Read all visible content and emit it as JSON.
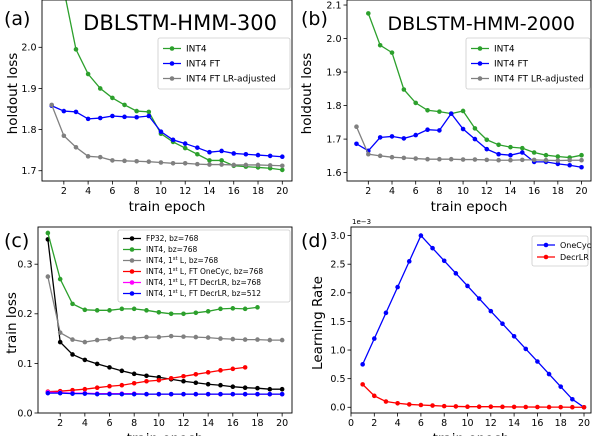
{
  "chart_data": [
    {
      "type": "line",
      "panel_label": "(a)",
      "title": "DBLSTM-HMM-300",
      "xlabel": "train epoch",
      "ylabel": "holdout loss",
      "xlim": [
        0.2,
        20.8
      ],
      "ylim": [
        1.675,
        2.115
      ],
      "xticks": [
        2,
        4,
        6,
        8,
        10,
        12,
        14,
        16,
        18,
        20
      ],
      "yticks": [
        1.7,
        1.8,
        1.9,
        2.0
      ],
      "ytick_labels": [
        "1.7",
        "1.8",
        "1.9",
        "2.0"
      ],
      "legend_position": "top-right",
      "series": [
        {
          "name": "INT4",
          "color": "#2ca02c",
          "x": [
            2,
            3,
            4,
            5,
            6,
            7,
            8,
            9,
            10,
            11,
            12,
            13,
            14,
            15,
            16,
            17,
            18,
            19,
            20
          ],
          "values": [
            2.14,
            1.995,
            1.935,
            1.9,
            1.877,
            1.86,
            1.845,
            1.843,
            1.79,
            1.77,
            1.755,
            1.74,
            1.725,
            1.725,
            1.712,
            1.71,
            1.708,
            1.706,
            1.702
          ]
        },
        {
          "name": "INT4 FT",
          "color": "#0000ff",
          "x": [
            1,
            2,
            3,
            4,
            5,
            6,
            7,
            8,
            9,
            10,
            11,
            12,
            13,
            14,
            15,
            16,
            17,
            18,
            19,
            20
          ],
          "values": [
            1.858,
            1.845,
            1.843,
            1.826,
            1.828,
            1.833,
            1.831,
            1.83,
            1.833,
            1.795,
            1.775,
            1.766,
            1.756,
            1.745,
            1.748,
            1.742,
            1.74,
            1.738,
            1.736,
            1.734
          ]
        },
        {
          "name": "INT4 FT LR-adjusted",
          "color": "#808080",
          "x": [
            1,
            2,
            3,
            4,
            5,
            6,
            7,
            8,
            9,
            10,
            11,
            12,
            13,
            14,
            15,
            16,
            17,
            18,
            19,
            20
          ],
          "values": [
            1.86,
            1.785,
            1.757,
            1.735,
            1.733,
            1.725,
            1.724,
            1.723,
            1.722,
            1.72,
            1.718,
            1.718,
            1.716,
            1.715,
            1.715,
            1.714,
            1.714,
            1.714,
            1.713,
            1.712
          ]
        }
      ]
    },
    {
      "type": "line",
      "panel_label": "(b)",
      "title": "DBLSTM-HMM-2000",
      "xlabel": "train epoch",
      "ylabel": "holdout loss",
      "xlim": [
        0.2,
        20.8
      ],
      "ylim": [
        1.575,
        2.115
      ],
      "xticks": [
        2,
        4,
        6,
        8,
        10,
        12,
        14,
        16,
        18,
        20
      ],
      "yticks": [
        1.6,
        1.7,
        1.8,
        1.9,
        2.0,
        2.1
      ],
      "ytick_labels": [
        "1.6",
        "1.7",
        "1.8",
        "1.9",
        "2.0",
        "2.1"
      ],
      "legend_position": "top-right",
      "series": [
        {
          "name": "INT4",
          "color": "#2ca02c",
          "x": [
            2,
            3,
            4,
            5,
            6,
            7,
            8,
            9,
            10,
            11,
            12,
            13,
            14,
            15,
            16,
            17,
            18,
            19,
            20
          ],
          "values": [
            2.075,
            1.98,
            1.958,
            1.848,
            1.808,
            1.786,
            1.782,
            1.776,
            1.784,
            1.732,
            1.698,
            1.683,
            1.676,
            1.673,
            1.66,
            1.652,
            1.648,
            1.645,
            1.652
          ]
        },
        {
          "name": "INT4 FT",
          "color": "#0000ff",
          "x": [
            1,
            2,
            3,
            4,
            5,
            6,
            7,
            8,
            9,
            10,
            11,
            12,
            13,
            14,
            15,
            16,
            17,
            18,
            19,
            20
          ],
          "values": [
            1.686,
            1.665,
            1.705,
            1.708,
            1.702,
            1.712,
            1.728,
            1.726,
            1.776,
            1.73,
            1.7,
            1.67,
            1.655,
            1.652,
            1.66,
            1.632,
            1.632,
            1.626,
            1.622,
            1.616
          ]
        },
        {
          "name": "INT4 FT LR-adjusted",
          "color": "#808080",
          "x": [
            1,
            2,
            3,
            4,
            5,
            6,
            7,
            8,
            9,
            10,
            11,
            12,
            13,
            14,
            15,
            16,
            17,
            18,
            19,
            20
          ],
          "values": [
            1.737,
            1.655,
            1.65,
            1.646,
            1.644,
            1.642,
            1.64,
            1.64,
            1.64,
            1.639,
            1.639,
            1.638,
            1.637,
            1.637,
            1.638,
            1.638,
            1.637,
            1.636,
            1.637,
            1.637
          ]
        }
      ]
    },
    {
      "type": "line",
      "panel_label": "(c)",
      "title": "",
      "xlabel": "train epoch",
      "ylabel": "train loss",
      "xlim": [
        0.2,
        20.8
      ],
      "ylim": [
        0.0,
        0.375
      ],
      "xticks": [
        2,
        4,
        6,
        8,
        10,
        12,
        14,
        16,
        18,
        20
      ],
      "yticks": [
        0.0,
        0.1,
        0.2,
        0.3
      ],
      "ytick_labels": [
        "0.0",
        "0.1",
        "0.2",
        "0.3"
      ],
      "legend_position": "top-right",
      "series": [
        {
          "name": "FP32, bz=768",
          "color": "#000000",
          "x": [
            1,
            2,
            3,
            4,
            5,
            6,
            7,
            8,
            9,
            10,
            11,
            12,
            13,
            14,
            15,
            16,
            17,
            18,
            19,
            20
          ],
          "values": [
            0.35,
            0.143,
            0.118,
            0.107,
            0.099,
            0.092,
            0.085,
            0.079,
            0.075,
            0.072,
            0.068,
            0.064,
            0.061,
            0.058,
            0.056,
            0.053,
            0.051,
            0.05,
            0.048,
            0.048
          ]
        },
        {
          "name": "INT4, bz=768",
          "color": "#2ca02c",
          "x": [
            1,
            2,
            3,
            4,
            5,
            6,
            7,
            8,
            9,
            10,
            11,
            12,
            13,
            14,
            15,
            16,
            17,
            18
          ],
          "values": [
            0.363,
            0.27,
            0.22,
            0.208,
            0.207,
            0.207,
            0.21,
            0.21,
            0.207,
            0.203,
            0.2,
            0.2,
            0.202,
            0.205,
            0.21,
            0.211,
            0.21,
            0.213
          ]
        },
        {
          "name": "INT4, 1$^{st}$ L, bz=768",
          "color": "#808080",
          "x": [
            1,
            2,
            3,
            4,
            5,
            6,
            7,
            8,
            9,
            10,
            11,
            12,
            13,
            14,
            15,
            16,
            17,
            18,
            19,
            20
          ],
          "values": [
            0.275,
            0.162,
            0.148,
            0.143,
            0.147,
            0.149,
            0.152,
            0.151,
            0.153,
            0.153,
            0.155,
            0.154,
            0.153,
            0.152,
            0.15,
            0.149,
            0.148,
            0.148,
            0.147,
            0.147
          ]
        },
        {
          "name": "INT4, 1$^{st}$ L, FT OneCyc, bz=768",
          "color": "#ff0000",
          "x": [
            1,
            2,
            3,
            4,
            5,
            6,
            7,
            8,
            9,
            10,
            11,
            12,
            13,
            14,
            15,
            16,
            17
          ],
          "values": [
            0.043,
            0.044,
            0.046,
            0.048,
            0.051,
            0.054,
            0.056,
            0.06,
            0.064,
            0.066,
            0.07,
            0.074,
            0.078,
            0.082,
            0.086,
            0.089,
            0.092
          ]
        },
        {
          "name": "INT4, 1$^{st}$ L, FT DecrLR, bz=768",
          "color": "#ff00ff",
          "x": [
            1,
            2,
            3,
            4,
            5,
            6,
            7,
            8,
            9,
            10,
            11,
            12,
            13,
            14,
            15,
            16,
            17,
            18,
            19,
            20
          ],
          "values": [
            0.042,
            0.041,
            0.04,
            0.04,
            0.039,
            0.039,
            0.039,
            0.039,
            0.038,
            0.038,
            0.038,
            0.038,
            0.038,
            0.038,
            0.038,
            0.038,
            0.038,
            0.038,
            0.038,
            0.038
          ]
        },
        {
          "name": "INT4, 1$^{st}$ L, FT DecrLR,  bz=512",
          "color": "#0000ff",
          "x": [
            1,
            2,
            3,
            4,
            5,
            6,
            7,
            8,
            9,
            10,
            11,
            12,
            13,
            14,
            15,
            16,
            17,
            18,
            19,
            20
          ],
          "values": [
            0.04,
            0.04,
            0.039,
            0.039,
            0.038,
            0.038,
            0.038,
            0.038,
            0.038,
            0.038,
            0.038,
            0.038,
            0.038,
            0.038,
            0.038,
            0.038,
            0.038,
            0.038,
            0.038,
            0.038
          ]
        }
      ]
    },
    {
      "type": "line",
      "panel_label": "(d)",
      "title": "",
      "xlabel": "train epoch",
      "ylabel": "Learning Rate",
      "scale_note": "1e−3",
      "xlim": [
        0.0,
        20.6
      ],
      "ylim": [
        -0.1,
        3.15
      ],
      "xticks": [
        0,
        2,
        4,
        6,
        8,
        10,
        12,
        14,
        16,
        18,
        20
      ],
      "yticks": [
        0.0,
        0.5,
        1.0,
        1.5,
        2.0,
        2.5,
        3.0
      ],
      "ytick_labels": [
        "0.0",
        "0.5",
        "1.0",
        "1.5",
        "2.0",
        "2.5",
        "3.0"
      ],
      "legend_position": "top-right",
      "series": [
        {
          "name": "OneCyc",
          "color": "#0000ff",
          "x": [
            1,
            2,
            3,
            4,
            5,
            6,
            7,
            8,
            9,
            10,
            11,
            12,
            13,
            14,
            15,
            16,
            17,
            18,
            19,
            20
          ],
          "values": [
            0.75,
            1.2,
            1.65,
            2.1,
            2.55,
            3.0,
            2.78,
            2.56,
            2.34,
            2.12,
            1.9,
            1.68,
            1.46,
            1.24,
            1.02,
            0.8,
            0.58,
            0.36,
            0.14,
            0.0
          ]
        },
        {
          "name": "DecrLR",
          "color": "#ff0000",
          "x": [
            1,
            2,
            3,
            4,
            5,
            6,
            7,
            8,
            9,
            10,
            11,
            12,
            13,
            14,
            15,
            16,
            17,
            18,
            19,
            20
          ],
          "values": [
            0.4,
            0.2,
            0.1,
            0.07,
            0.05,
            0.04,
            0.03,
            0.02,
            0.015,
            0.01,
            0.01,
            0.01,
            0.008,
            0.006,
            0.005,
            0.004,
            0.003,
            0.002,
            0.001,
            0.0
          ]
        }
      ]
    }
  ]
}
